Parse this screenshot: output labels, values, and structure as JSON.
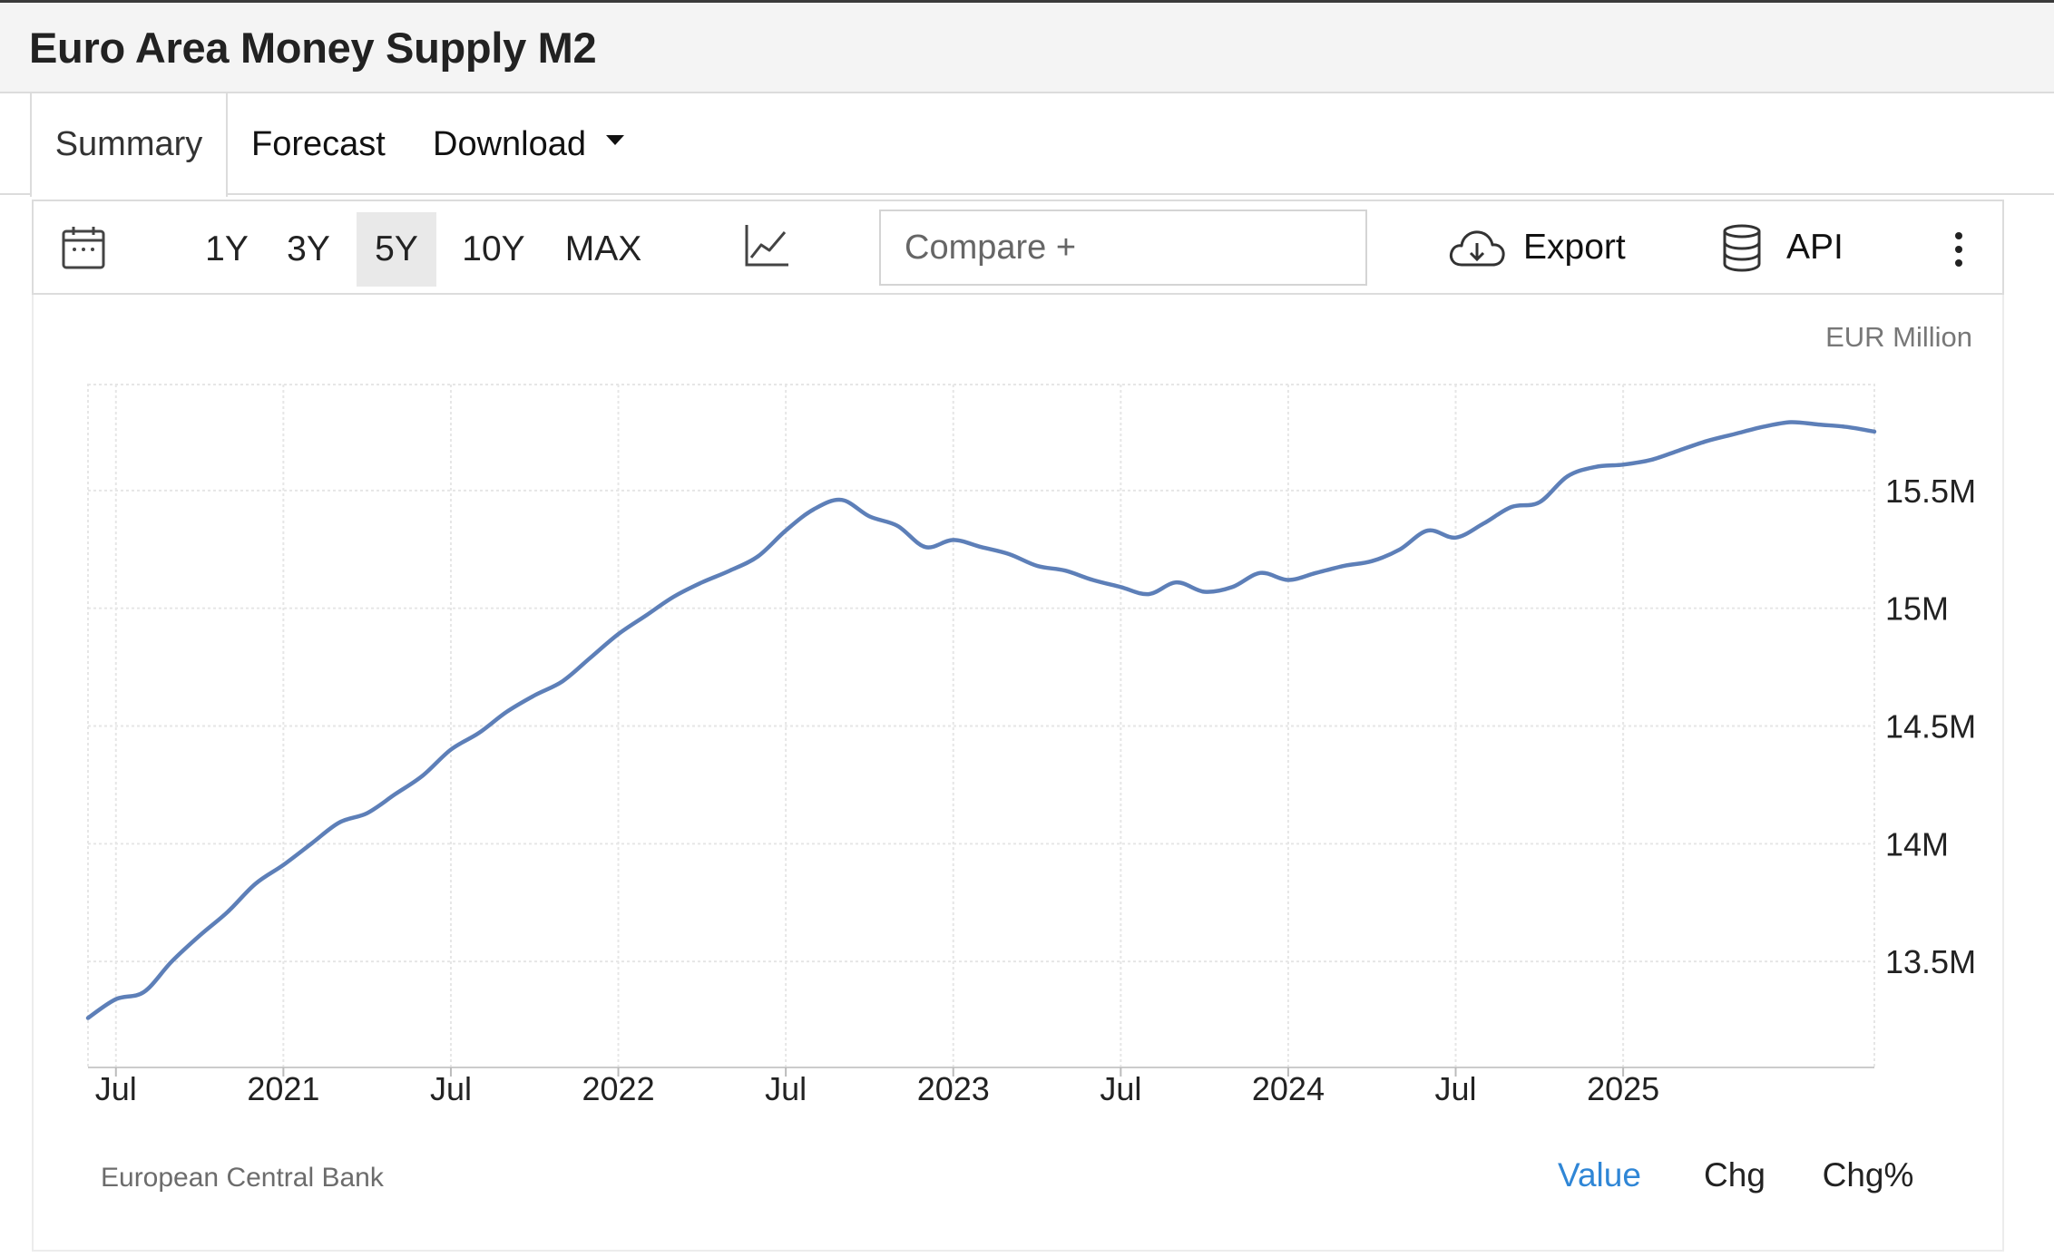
{
  "page": {
    "title": "Euro Area Money Supply M2"
  },
  "tabs": [
    {
      "label": "Summary",
      "active": true
    },
    {
      "label": "Forecast",
      "active": false
    },
    {
      "label": "Download",
      "active": false
    }
  ],
  "toolbar": {
    "calendar_icon": "calendar-icon",
    "ranges": [
      {
        "label": "1Y",
        "active": false
      },
      {
        "label": "3Y",
        "active": false
      },
      {
        "label": "5Y",
        "active": true
      },
      {
        "label": "10Y",
        "active": false
      },
      {
        "label": "MAX",
        "active": false
      }
    ],
    "chart_type_icon": "line-chart-icon",
    "compare_placeholder": "Compare +",
    "export_label": "Export",
    "export_icon": "cloud-download-icon",
    "api_label": "API",
    "api_icon": "database-icon",
    "more_icon": "more-vertical-icon"
  },
  "colors": {
    "line": "#5d7fb8",
    "active_link": "#2f86d6",
    "grid": "#e6e6e6"
  },
  "chart_data": {
    "type": "line",
    "title": "",
    "unit_label": "EUR Million",
    "xlabel": "",
    "ylabel": "",
    "x_tick_labels": [
      "Jul",
      "2021",
      "Jul",
      "2022",
      "Jul",
      "2023",
      "Jul",
      "2024",
      "Jul",
      "2025"
    ],
    "x_tick_dates": [
      "2020-07",
      "2021-01",
      "2021-07",
      "2022-01",
      "2022-07",
      "2023-01",
      "2023-07",
      "2024-01",
      "2024-07",
      "2025-01"
    ],
    "x_range": [
      "2020-06",
      "2025-10"
    ],
    "y_tick_labels": [
      "13.5M",
      "14M",
      "14.5M",
      "15M",
      "15.5M"
    ],
    "y_tick_values": [
      13.5,
      14,
      14.5,
      15,
      15.5
    ],
    "y_unit": "million EUR millions (M)",
    "ylim": [
      13.05,
      15.95
    ],
    "grid": true,
    "legend": "none",
    "series": [
      {
        "x": [
          "2020-06",
          "2020-07",
          "2020-08",
          "2020-09",
          "2020-10",
          "2020-11",
          "2020-12",
          "2021-01",
          "2021-02",
          "2021-03",
          "2021-04",
          "2021-05",
          "2021-06",
          "2021-07",
          "2021-08",
          "2021-09",
          "2021-10",
          "2021-11",
          "2021-12",
          "2022-01",
          "2022-02",
          "2022-03",
          "2022-04",
          "2022-05",
          "2022-06",
          "2022-07",
          "2022-08",
          "2022-09",
          "2022-10",
          "2022-11",
          "2022-12",
          "2023-01",
          "2023-02",
          "2023-03",
          "2023-04",
          "2023-05",
          "2023-06",
          "2023-07",
          "2023-08",
          "2023-09",
          "2023-10",
          "2023-11",
          "2023-12",
          "2024-01",
          "2024-02",
          "2024-03",
          "2024-04",
          "2024-05",
          "2024-06",
          "2024-07",
          "2024-08",
          "2024-09",
          "2024-10",
          "2024-11",
          "2024-12",
          "2025-01",
          "2025-02",
          "2025-03",
          "2025-04",
          "2025-05",
          "2025-06",
          "2025-07",
          "2025-08",
          "2025-09",
          "2025-10"
        ],
        "values": [
          13.26,
          13.34,
          13.37,
          13.5,
          13.61,
          13.71,
          13.83,
          13.91,
          14.0,
          14.09,
          14.13,
          14.21,
          14.29,
          14.4,
          14.47,
          14.56,
          14.63,
          14.69,
          14.79,
          14.89,
          14.97,
          15.05,
          15.11,
          15.16,
          15.22,
          15.33,
          15.42,
          15.46,
          15.39,
          15.35,
          15.26,
          15.29,
          15.26,
          15.23,
          15.18,
          15.16,
          15.12,
          15.09,
          15.06,
          15.11,
          15.07,
          15.09,
          15.15,
          15.12,
          15.15,
          15.18,
          15.2,
          15.25,
          15.33,
          15.3,
          15.36,
          15.43,
          15.45,
          15.56,
          15.6,
          15.61,
          15.63,
          15.67,
          15.71,
          15.74,
          15.77,
          15.79,
          15.78,
          15.77,
          15.75
        ]
      }
    ]
  },
  "footer": {
    "source": "European Central Bank",
    "view_options": [
      {
        "label": "Value",
        "active": true
      },
      {
        "label": "Chg",
        "active": false
      },
      {
        "label": "Chg%",
        "active": false
      }
    ]
  }
}
